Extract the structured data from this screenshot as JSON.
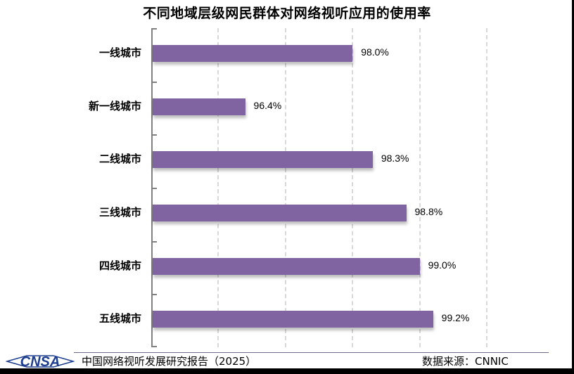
{
  "title": "不同地域层级网民群体对网络视听应用的使用率",
  "footer": {
    "report": "中国网络视听发展研究报告（2025）",
    "source": "数据来源：CNNIC",
    "logo_text": "CNSA"
  },
  "colors": {
    "bar": "#8064a2",
    "axis": "#808080",
    "grid": "#d9d9d9",
    "logo": "#1d3e8f"
  },
  "chart_data": {
    "type": "bar",
    "orientation": "horizontal",
    "title": "不同地域层级网民群体对网络视听应用的使用率",
    "categories": [
      "一线城市",
      "新一线城市",
      "二线城市",
      "三线城市",
      "四线城市",
      "五线城市"
    ],
    "values": [
      98.0,
      96.4,
      98.3,
      98.8,
      99.0,
      99.2
    ],
    "labels": [
      "98.0%",
      "96.4%",
      "98.3%",
      "98.8%",
      "99.0%",
      "99.2%"
    ],
    "xlabel": "",
    "ylabel": "",
    "xlim": [
      95,
      100
    ],
    "grid": true,
    "legend": null,
    "unit": "%"
  }
}
